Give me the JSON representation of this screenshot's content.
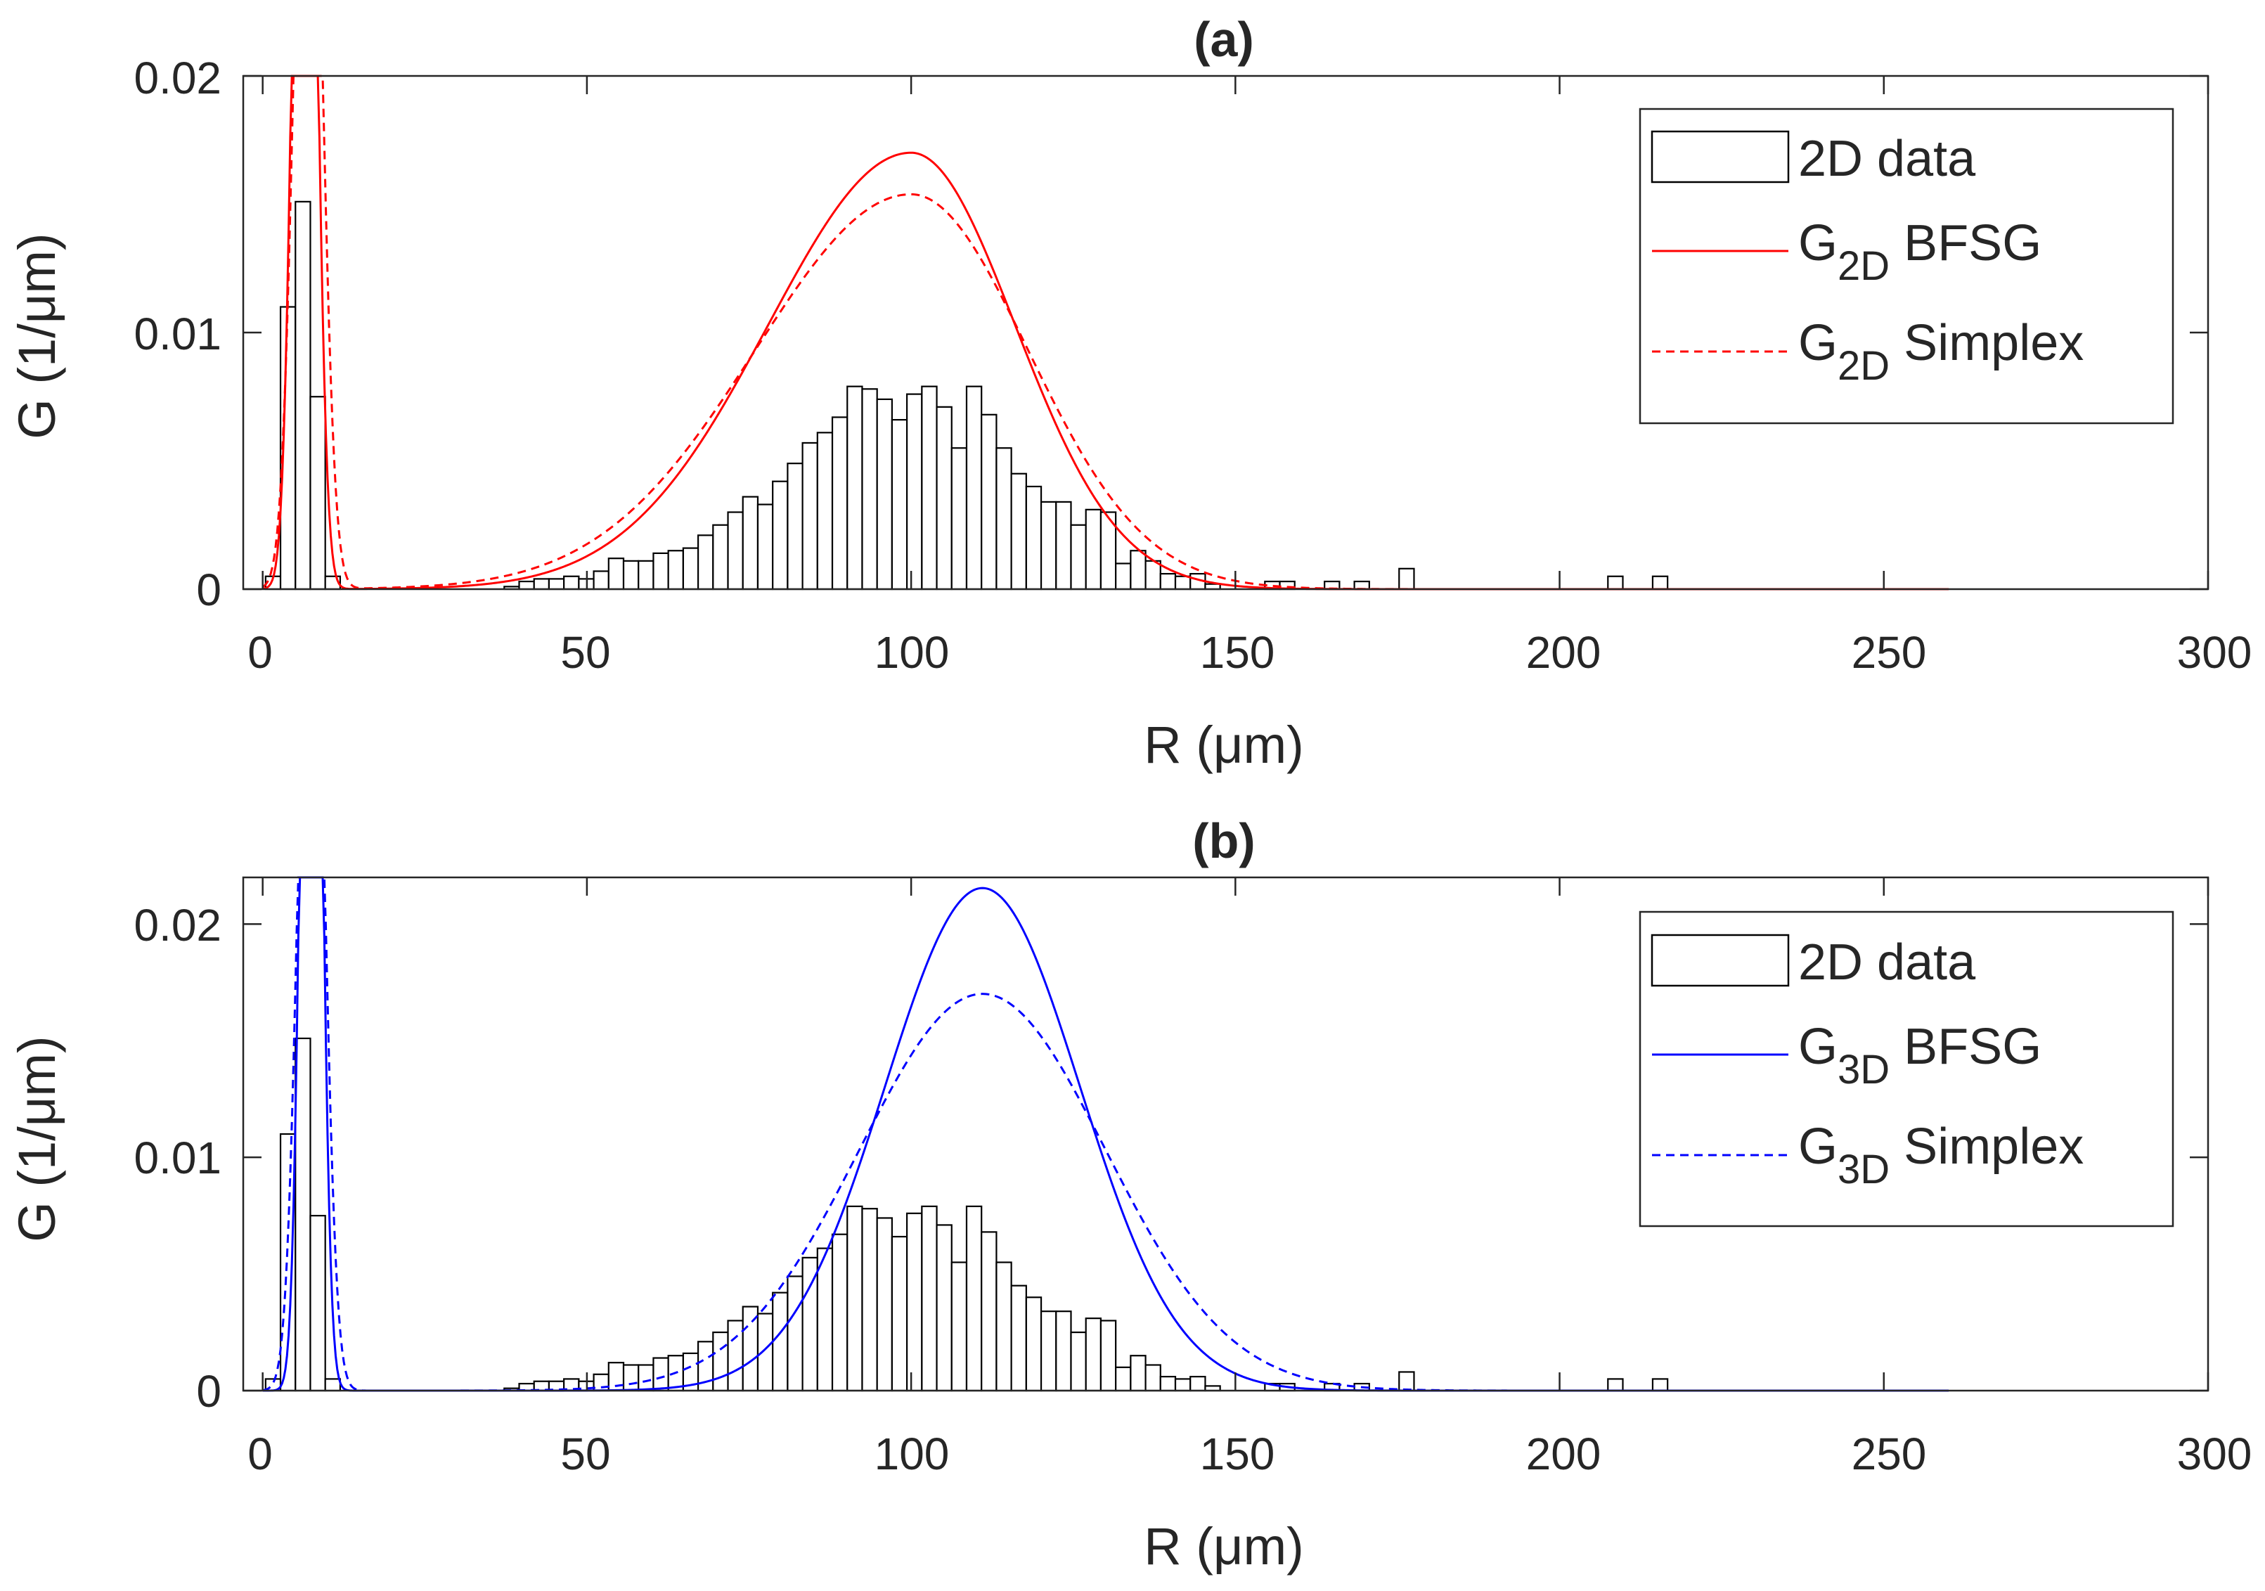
{
  "chart_data": [
    {
      "type": "histogram+line",
      "title": "(a)",
      "xlabel": "R (μm)",
      "ylabel": "G (1/μm)",
      "xlim": [
        -3,
        300
      ],
      "ylim": [
        0,
        0.02
      ],
      "xticks": [
        0,
        50,
        100,
        150,
        200,
        250,
        300
      ],
      "xtick_labels": [
        "0",
        "50",
        "100",
        "150",
        "200",
        "250",
        "300"
      ],
      "yticks": [
        0,
        0.01,
        0.02
      ],
      "ytick_labels": [
        "0",
        "0.01",
        "0.02"
      ],
      "legend": {
        "location": "top-right",
        "entries": [
          {
            "label": "2D data",
            "style": "bar"
          },
          {
            "label_main": "G",
            "label_sub": "2D",
            "label_rest": " BFSG",
            "style": "solid",
            "color": "#ff0000"
          },
          {
            "label_main": "G",
            "label_sub": "2D",
            "label_rest": " Simplex",
            "style": "dashed",
            "color": "#ff0000"
          }
        ]
      },
      "series": [
        {
          "name": "G2D BFSG",
          "kind": "line",
          "color": "#ff0000",
          "dash": false,
          "x_range": [
            0,
            260
          ],
          "components": [
            {
              "weight": 0.19,
              "mean": 6.5,
              "sd": 1.6
            },
            {
              "weight": 0.81,
              "mean": 100,
              "sd": 16,
              "sd_left": 22,
              "sd_right": 16
            }
          ]
        },
        {
          "name": "G2D Simplex",
          "kind": "line",
          "color": "#ff0000",
          "dash": true,
          "x_range": [
            0,
            260
          ],
          "components": [
            {
              "weight": 0.19,
              "mean": 7,
              "sd": 2.0
            },
            {
              "weight": 0.81,
              "mean": 100,
              "sd": 18,
              "sd_left": 24,
              "sd_right": 18
            }
          ]
        }
      ]
    },
    {
      "type": "histogram+line",
      "title": "(b)",
      "xlabel": "R (μm)",
      "ylabel": "G (1/μm)",
      "xlim": [
        -3,
        300
      ],
      "ylim": [
        0,
        0.022
      ],
      "xticks": [
        0,
        50,
        100,
        150,
        200,
        250,
        300
      ],
      "xtick_labels": [
        "0",
        "50",
        "100",
        "150",
        "200",
        "250",
        "300"
      ],
      "yticks": [
        0,
        0.01,
        0.02
      ],
      "ytick_labels": [
        "0",
        "0.01",
        "0.02"
      ],
      "legend": {
        "location": "top-right",
        "entries": [
          {
            "label": "2D data",
            "style": "bar"
          },
          {
            "label_main": "G",
            "label_sub": "3D",
            "label_rest": " BFSG",
            "style": "solid",
            "color": "#0000ff"
          },
          {
            "label_main": "G",
            "label_sub": "3D",
            "label_rest": " Simplex",
            "style": "dashed",
            "color": "#0000ff"
          }
        ]
      },
      "series": [
        {
          "name": "G3D BFSG",
          "kind": "line",
          "color": "#0000ff",
          "dash": false,
          "x_range": [
            0,
            260
          ],
          "components": [
            {
              "weight": 0.19,
              "mean": 7.5,
              "sd": 1.4
            },
            {
              "weight": 0.81,
              "mean": 111,
              "sd": 15
            }
          ]
        },
        {
          "name": "G3D Simplex",
          "kind": "line",
          "color": "#0000ff",
          "dash": true,
          "x_range": [
            0,
            260
          ],
          "components": [
            {
              "weight": 0.19,
              "mean": 7.5,
              "sd": 1.9
            },
            {
              "weight": 0.81,
              "mean": 111,
              "sd": 19
            }
          ]
        }
      ]
    }
  ],
  "histogram": {
    "name": "2D data",
    "bin_width": 2.3,
    "bins": [
      {
        "x": 1.6,
        "y": 0.0005
      },
      {
        "x": 3.9,
        "y": 0.011
      },
      {
        "x": 6.2,
        "y": 0.0151
      },
      {
        "x": 8.5,
        "y": 0.0075
      },
      {
        "x": 10.8,
        "y": 0.0005
      },
      {
        "x": 38.4,
        "y": 0.0001
      },
      {
        "x": 40.7,
        "y": 0.0003
      },
      {
        "x": 43.0,
        "y": 0.0004
      },
      {
        "x": 45.3,
        "y": 0.0004
      },
      {
        "x": 47.6,
        "y": 0.0005
      },
      {
        "x": 49.9,
        "y": 0.0004
      },
      {
        "x": 52.2,
        "y": 0.0007
      },
      {
        "x": 54.5,
        "y": 0.0012
      },
      {
        "x": 56.8,
        "y": 0.0011
      },
      {
        "x": 59.1,
        "y": 0.0011
      },
      {
        "x": 61.4,
        "y": 0.0014
      },
      {
        "x": 63.7,
        "y": 0.0015
      },
      {
        "x": 66.0,
        "y": 0.0016
      },
      {
        "x": 68.3,
        "y": 0.0021
      },
      {
        "x": 70.6,
        "y": 0.0025
      },
      {
        "x": 72.9,
        "y": 0.003
      },
      {
        "x": 75.2,
        "y": 0.0036
      },
      {
        "x": 77.5,
        "y": 0.0033
      },
      {
        "x": 79.8,
        "y": 0.0042
      },
      {
        "x": 82.1,
        "y": 0.0049
      },
      {
        "x": 84.4,
        "y": 0.0057
      },
      {
        "x": 86.7,
        "y": 0.0061
      },
      {
        "x": 89.0,
        "y": 0.0067
      },
      {
        "x": 91.3,
        "y": 0.0079
      },
      {
        "x": 93.6,
        "y": 0.0078
      },
      {
        "x": 95.9,
        "y": 0.0074
      },
      {
        "x": 98.2,
        "y": 0.0066
      },
      {
        "x": 100.5,
        "y": 0.0076
      },
      {
        "x": 102.8,
        "y": 0.0079
      },
      {
        "x": 105.1,
        "y": 0.0071
      },
      {
        "x": 107.4,
        "y": 0.0055
      },
      {
        "x": 109.7,
        "y": 0.0079
      },
      {
        "x": 112.0,
        "y": 0.0068
      },
      {
        "x": 114.3,
        "y": 0.0055
      },
      {
        "x": 116.6,
        "y": 0.0045
      },
      {
        "x": 118.9,
        "y": 0.004
      },
      {
        "x": 121.2,
        "y": 0.0034
      },
      {
        "x": 123.5,
        "y": 0.0034
      },
      {
        "x": 125.8,
        "y": 0.0025
      },
      {
        "x": 128.1,
        "y": 0.0031
      },
      {
        "x": 130.4,
        "y": 0.003
      },
      {
        "x": 132.7,
        "y": 0.001
      },
      {
        "x": 135.0,
        "y": 0.0015
      },
      {
        "x": 137.3,
        "y": 0.0011
      },
      {
        "x": 139.6,
        "y": 0.0006
      },
      {
        "x": 141.9,
        "y": 0.0005
      },
      {
        "x": 144.2,
        "y": 0.0006
      },
      {
        "x": 146.5,
        "y": 0.0002
      },
      {
        "x": 155.7,
        "y": 0.0003
      },
      {
        "x": 158.0,
        "y": 0.0003
      },
      {
        "x": 164.9,
        "y": 0.0003
      },
      {
        "x": 169.5,
        "y": 0.0003
      },
      {
        "x": 176.4,
        "y": 0.0008
      },
      {
        "x": 208.6,
        "y": 0.0005
      },
      {
        "x": 215.5,
        "y": 0.0005
      }
    ]
  }
}
